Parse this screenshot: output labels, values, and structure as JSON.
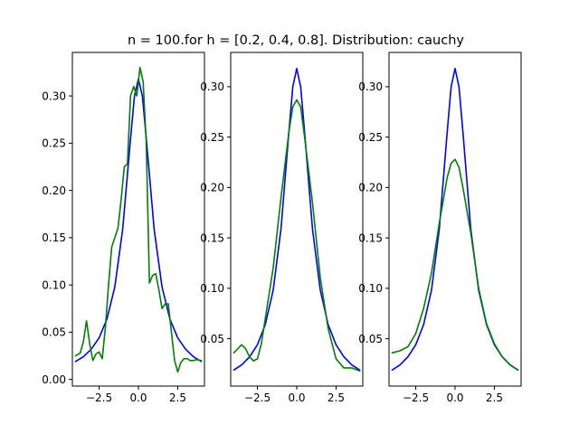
{
  "figure": {
    "title": "n = 100.for h = [0.2, 0.4, 0.8]. Distribution: cauchy"
  },
  "chart_data": [
    {
      "type": "line",
      "title": "",
      "xlim": [
        -4.2,
        4.2
      ],
      "ylim": [
        -0.007,
        0.346
      ],
      "xticks": [
        -2.5,
        0.0,
        2.5
      ],
      "xtick_labels": [
        "−2.5",
        "0.0",
        "2.5"
      ],
      "yticks": [
        0.0,
        0.05,
        0.1,
        0.15,
        0.2,
        0.25,
        0.3
      ],
      "ytick_labels": [
        "0.00",
        "0.05",
        "0.10",
        "0.15",
        "0.20",
        "0.25",
        "0.30"
      ],
      "series": [
        {
          "color": "#0000ff",
          "x": [
            -4.0,
            -3.5,
            -3.0,
            -2.5,
            -2.0,
            -1.5,
            -1.0,
            -0.5,
            -0.25,
            0.0,
            0.25,
            0.5,
            1.0,
            1.5,
            2.0,
            2.5,
            3.0,
            3.5,
            4.0
          ],
          "y": [
            0.019,
            0.024,
            0.032,
            0.044,
            0.064,
            0.098,
            0.159,
            0.255,
            0.3,
            0.318,
            0.3,
            0.255,
            0.159,
            0.098,
            0.064,
            0.044,
            0.032,
            0.024,
            0.019
          ]
        },
        {
          "color": "#008000",
          "x": [
            -4.0,
            -3.7,
            -3.5,
            -3.3,
            -3.1,
            -2.9,
            -2.7,
            -2.5,
            -2.3,
            -2.1,
            -1.9,
            -1.7,
            -1.5,
            -1.3,
            -1.1,
            -0.9,
            -0.7,
            -0.5,
            -0.3,
            -0.1,
            0.1,
            0.3,
            0.5,
            0.7,
            0.9,
            1.1,
            1.3,
            1.5,
            1.7,
            1.9,
            2.1,
            2.3,
            2.5,
            2.7,
            2.9,
            3.1,
            3.3,
            3.5,
            3.7,
            4.0
          ],
          "y": [
            0.025,
            0.028,
            0.04,
            0.062,
            0.038,
            0.02,
            0.027,
            0.029,
            0.022,
            0.055,
            0.1,
            0.14,
            0.15,
            0.16,
            0.19,
            0.225,
            0.228,
            0.3,
            0.31,
            0.3,
            0.33,
            0.315,
            0.25,
            0.102,
            0.11,
            0.112,
            0.095,
            0.075,
            0.08,
            0.08,
            0.05,
            0.02,
            0.008,
            0.018,
            0.022,
            0.022,
            0.02,
            0.02,
            0.021,
            0.02
          ]
        }
      ]
    },
    {
      "type": "line",
      "title": "",
      "xlim": [
        -4.2,
        4.2
      ],
      "ylim": [
        0.003,
        0.334
      ],
      "xticks": [
        -2.5,
        0.0,
        2.5
      ],
      "xtick_labels": [
        "−2.5",
        "0.0",
        "2.5"
      ],
      "yticks": [
        0.05,
        0.1,
        0.15,
        0.2,
        0.25,
        0.3
      ],
      "ytick_labels": [
        "0.05",
        "0.10",
        "0.15",
        "0.20",
        "0.25",
        "0.30"
      ],
      "series": [
        {
          "color": "#0000ff",
          "x": [
            -4.0,
            -3.5,
            -3.0,
            -2.5,
            -2.0,
            -1.5,
            -1.0,
            -0.5,
            -0.25,
            0.0,
            0.25,
            0.5,
            1.0,
            1.5,
            2.0,
            2.5,
            3.0,
            3.5,
            4.0
          ],
          "y": [
            0.019,
            0.024,
            0.032,
            0.044,
            0.064,
            0.098,
            0.159,
            0.255,
            0.3,
            0.318,
            0.3,
            0.255,
            0.159,
            0.098,
            0.064,
            0.044,
            0.032,
            0.024,
            0.019
          ]
        },
        {
          "color": "#008000",
          "x": [
            -4.0,
            -3.75,
            -3.5,
            -3.25,
            -3.0,
            -2.75,
            -2.5,
            -2.25,
            -2.0,
            -1.5,
            -1.0,
            -0.5,
            -0.25,
            0.0,
            0.25,
            0.5,
            1.0,
            1.5,
            2.0,
            2.5,
            3.0,
            3.5,
            4.0
          ],
          "y": [
            0.036,
            0.04,
            0.044,
            0.04,
            0.032,
            0.028,
            0.03,
            0.045,
            0.07,
            0.12,
            0.19,
            0.255,
            0.28,
            0.287,
            0.28,
            0.25,
            0.185,
            0.11,
            0.06,
            0.03,
            0.021,
            0.021,
            0.018
          ]
        }
      ]
    },
    {
      "type": "line",
      "title": "",
      "xlim": [
        -4.2,
        4.2
      ],
      "ylim": [
        0.003,
        0.334
      ],
      "xticks": [
        -2.5,
        0.0,
        2.5
      ],
      "xtick_labels": [
        "−2.5",
        "0.0",
        "2.5"
      ],
      "yticks": [
        0.05,
        0.1,
        0.15,
        0.2,
        0.25,
        0.3
      ],
      "ytick_labels": [
        "0.05",
        "0.10",
        "0.15",
        "0.20",
        "0.25",
        "0.30"
      ],
      "series": [
        {
          "color": "#0000ff",
          "x": [
            -4.0,
            -3.5,
            -3.0,
            -2.5,
            -2.0,
            -1.5,
            -1.0,
            -0.5,
            -0.25,
            0.0,
            0.25,
            0.5,
            1.0,
            1.5,
            2.0,
            2.5,
            3.0,
            3.5,
            4.0
          ],
          "y": [
            0.019,
            0.024,
            0.032,
            0.044,
            0.064,
            0.098,
            0.159,
            0.255,
            0.3,
            0.318,
            0.3,
            0.255,
            0.159,
            0.098,
            0.064,
            0.044,
            0.032,
            0.024,
            0.019
          ]
        },
        {
          "color": "#008000",
          "x": [
            -4.0,
            -3.5,
            -3.0,
            -2.5,
            -2.0,
            -1.5,
            -1.0,
            -0.5,
            -0.25,
            0.0,
            0.25,
            0.5,
            1.0,
            1.5,
            2.0,
            2.5,
            3.0,
            3.5,
            4.0
          ],
          "y": [
            0.036,
            0.038,
            0.042,
            0.055,
            0.08,
            0.115,
            0.165,
            0.21,
            0.224,
            0.228,
            0.22,
            0.2,
            0.155,
            0.1,
            0.065,
            0.045,
            0.032,
            0.024,
            0.019
          ]
        }
      ]
    }
  ]
}
